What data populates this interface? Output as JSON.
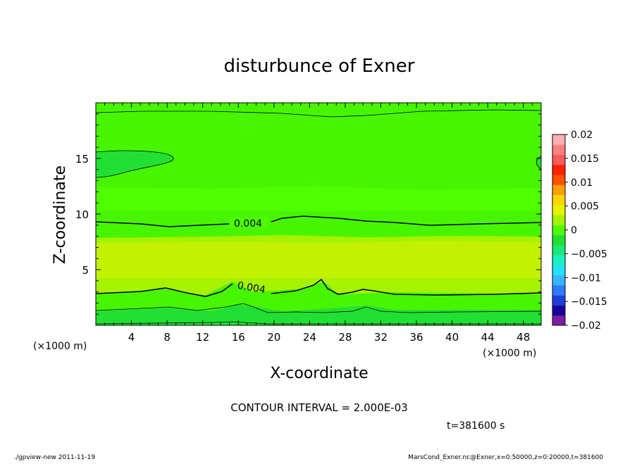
{
  "chart_data": {
    "type": "contour",
    "title": "disturbunce of Exner",
    "xlabel": "X-coordinate",
    "ylabel": "Z-coordinate",
    "x_unit_left": "(×1000 m)",
    "x_unit_right": "(×1000 m)",
    "xlim": [
      0,
      50
    ],
    "ylim": [
      0,
      20
    ],
    "x_ticks": [
      4,
      8,
      12,
      16,
      20,
      24,
      28,
      32,
      36,
      40,
      44,
      48
    ],
    "y_ticks": [
      5,
      10,
      15
    ],
    "x_tick_labels": [
      "4",
      "8",
      "12",
      "16",
      "20",
      "24",
      "28",
      "32",
      "36",
      "40",
      "44",
      "48"
    ],
    "y_tick_labels": [
      "5",
      "10",
      "15"
    ],
    "contour_labels": [
      "0.004",
      "0.004"
    ],
    "contour_interval_text": "CONTOUR INTERVAL = 2.000E-03",
    "time_text": "t=381600 s",
    "colorbar": {
      "range": [
        -0.02,
        0.02
      ],
      "tick_labels": [
        "0.02",
        "0.015",
        "0.01",
        "0.005",
        "0",
        "−0.005",
        "−0.01",
        "−0.015",
        "−0.02"
      ],
      "colors": [
        "#7b1fa2",
        "#1a0099",
        "#1f3fd6",
        "#2e7bff",
        "#39b4ff",
        "#22e0ff",
        "#19f0c0",
        "#19e87a",
        "#22e033",
        "#4dff00",
        "#a6f200",
        "#e6f200",
        "#ffd500",
        "#ffa000",
        "#ff5000",
        "#ff2000",
        "#ff5a5a",
        "#ff8080",
        "#ffb0b0"
      ]
    },
    "fill_colors": {
      "very_light_green": "#4dff00",
      "bright_green": "#48f500",
      "yellow_green": "#a6f200",
      "light_yellow_green": "#c2f200",
      "deep_green": "#22e033"
    }
  },
  "footer": {
    "left": "./gpview-new   2011-11-19",
    "right": "MarsCond_Exner.nc@Exner,x=0:50000,z=0:20000,t=381600"
  }
}
